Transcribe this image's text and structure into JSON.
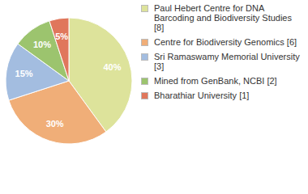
{
  "chart_data": {
    "type": "pie",
    "categories": [
      "Paul Hebert Centre for DNA Barcoding and Biodiversity Studies [8]",
      "Centre for Biodiversity Genomics [6]",
      "Sri Ramaswamy Memorial University [3]",
      "Mined from GenBank, NCBI [2]",
      "Bharathiar University [1]"
    ],
    "values": [
      40,
      30,
      15,
      10,
      5
    ],
    "value_labels": [
      "40%",
      "30%",
      "15%",
      "10%",
      "5%"
    ],
    "colors": [
      "#dde39b",
      "#f0ae78",
      "#a3bde0",
      "#9cc46e",
      "#e0775c"
    ],
    "data_labels": true,
    "legend": "right"
  }
}
